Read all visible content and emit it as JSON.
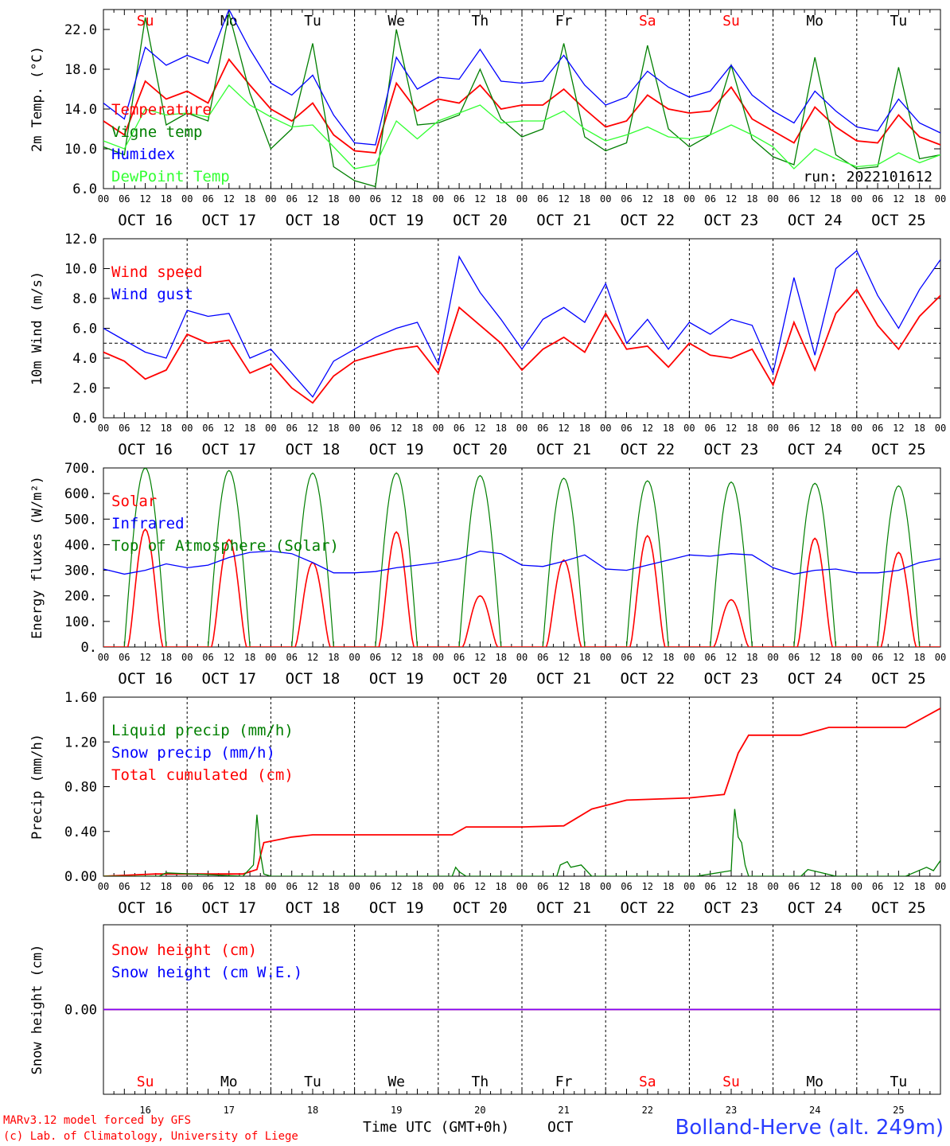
{
  "run_label": "run: 2022101612",
  "footer": {
    "model": "MARv3.12 model forced by GFS",
    "lab": "(c) Lab. of Climatology, University of Liege",
    "time_axis": "Time UTC (GMT+0h)",
    "month": "OCT",
    "station": "Bolland-Herve (alt. 249m)"
  },
  "colors": {
    "red": "#ff0000",
    "green": "#007f00",
    "blue": "#0000ff",
    "lightgreen": "#33ff33",
    "purple": "#7f00ff"
  },
  "weekdays": [
    {
      "label": "Su",
      "weekend": true
    },
    {
      "label": "Mo",
      "weekend": false
    },
    {
      "label": "Tu",
      "weekend": false
    },
    {
      "label": "We",
      "weekend": false
    },
    {
      "label": "Th",
      "weekend": false
    },
    {
      "label": "Fr",
      "weekend": false
    },
    {
      "label": "Sa",
      "weekend": true
    },
    {
      "label": "Su",
      "weekend": true
    },
    {
      "label": "Mo",
      "weekend": false
    },
    {
      "label": "Tu",
      "weekend": false
    }
  ],
  "date_labels": [
    "OCT 16",
    "OCT 17",
    "OCT 18",
    "OCT 19",
    "OCT 20",
    "OCT 21",
    "OCT 22",
    "OCT 23",
    "OCT 24",
    "OCT 25"
  ],
  "day_numbers": [
    "16",
    "17",
    "18",
    "19",
    "20",
    "21",
    "22",
    "23",
    "24",
    "25"
  ],
  "hour_labels": [
    "00",
    "06",
    "12",
    "18"
  ],
  "hour_end_label": "00",
  "chart_data": [
    {
      "id": "temperature",
      "type": "line",
      "ylabel": "2m Temp. (°C)",
      "ylim": [
        6,
        24
      ],
      "yticks": [
        6,
        10,
        14,
        18,
        22
      ],
      "ytick_labels": [
        "6.0",
        "10.0",
        "14.0",
        "18.0",
        "22.0"
      ],
      "xunit": "hours since Oct 16 00 UTC",
      "xlim": [
        0,
        240
      ],
      "legend": [
        "Temperature",
        "Vigne temp",
        "Humidex",
        "DewPoint Temp"
      ],
      "series": [
        {
          "name": "Temperature",
          "color": "red",
          "x": [
            0,
            6,
            12,
            18,
            24,
            30,
            36,
            42,
            48,
            54,
            60,
            66,
            72,
            78,
            84,
            90,
            96,
            102,
            108,
            114,
            120,
            126,
            132,
            138,
            144,
            150,
            156,
            162,
            168,
            174,
            180,
            186,
            192,
            198,
            204,
            210,
            216,
            222,
            228,
            234,
            240
          ],
          "y": [
            12.8,
            11.4,
            16.8,
            15.0,
            15.8,
            14.6,
            19.0,
            16.4,
            14.0,
            12.8,
            14.6,
            11.4,
            9.8,
            9.6,
            16.6,
            13.8,
            15.0,
            14.6,
            16.4,
            14.0,
            14.4,
            14.4,
            16.0,
            14.0,
            12.2,
            12.8,
            15.4,
            14.0,
            13.6,
            13.8,
            16.2,
            13.0,
            11.8,
            10.6,
            14.2,
            12.2,
            10.8,
            10.6,
            13.4,
            11.2,
            10.4
          ]
        },
        {
          "name": "Vigne temp",
          "color": "green",
          "x": [
            0,
            6,
            12,
            18,
            24,
            30,
            36,
            42,
            48,
            54,
            60,
            66,
            72,
            78,
            84,
            90,
            96,
            102,
            108,
            114,
            120,
            126,
            132,
            138,
            144,
            150,
            156,
            162,
            168,
            174,
            180,
            186,
            192,
            198,
            204,
            210,
            216,
            222,
            228,
            234,
            240
          ],
          "y": [
            10.2,
            9.4,
            23.2,
            12.4,
            13.6,
            12.8,
            23.6,
            15.6,
            10.0,
            12.0,
            20.6,
            8.2,
            6.8,
            6.2,
            22.0,
            12.4,
            12.6,
            13.4,
            18.0,
            13.0,
            11.2,
            12.0,
            20.6,
            11.2,
            9.8,
            10.6,
            20.4,
            12.0,
            10.2,
            11.4,
            18.4,
            11.0,
            9.2,
            8.4,
            19.2,
            9.4,
            8.0,
            8.2,
            18.2,
            9.0,
            9.4
          ]
        },
        {
          "name": "Humidex",
          "color": "blue",
          "x": [
            0,
            6,
            12,
            18,
            24,
            30,
            36,
            42,
            48,
            54,
            60,
            66,
            72,
            78,
            84,
            90,
            96,
            102,
            108,
            114,
            120,
            126,
            132,
            138,
            144,
            150,
            156,
            162,
            168,
            174,
            180,
            186,
            192,
            198,
            204,
            210,
            216,
            222,
            228,
            234,
            240
          ],
          "y": [
            14.6,
            13.0,
            20.2,
            18.4,
            19.4,
            18.6,
            24.0,
            20.0,
            16.6,
            15.4,
            17.4,
            13.4,
            10.6,
            10.4,
            19.2,
            16.0,
            17.2,
            17.0,
            20.0,
            16.8,
            16.6,
            16.8,
            19.4,
            16.4,
            14.4,
            15.2,
            17.8,
            16.2,
            15.2,
            15.8,
            18.4,
            15.4,
            13.8,
            12.6,
            15.8,
            13.8,
            12.2,
            11.8,
            15.0,
            12.6,
            11.6
          ]
        },
        {
          "name": "DewPoint Temp",
          "color": "lightgreen",
          "x": [
            0,
            6,
            12,
            18,
            24,
            30,
            36,
            42,
            48,
            54,
            60,
            66,
            72,
            78,
            84,
            90,
            96,
            102,
            108,
            114,
            120,
            126,
            132,
            138,
            144,
            150,
            156,
            162,
            168,
            174,
            180,
            186,
            192,
            198,
            204,
            210,
            216,
            222,
            228,
            234,
            240
          ],
          "y": [
            10.8,
            10.0,
            14.0,
            13.4,
            13.6,
            13.2,
            16.4,
            14.4,
            13.2,
            12.2,
            12.4,
            10.2,
            8.0,
            8.4,
            12.8,
            11.0,
            12.8,
            13.6,
            14.4,
            12.6,
            12.8,
            12.8,
            13.8,
            12.0,
            10.8,
            11.4,
            12.2,
            11.2,
            11.0,
            11.4,
            12.4,
            11.4,
            10.2,
            8.0,
            10.0,
            9.0,
            8.2,
            8.4,
            9.6,
            8.6,
            9.4
          ]
        }
      ]
    },
    {
      "id": "wind",
      "type": "line",
      "ylabel": "10m Wind (m/s)",
      "ylim": [
        0,
        12
      ],
      "yticks": [
        0,
        2,
        4,
        6,
        8,
        10,
        12
      ],
      "ytick_labels": [
        "0.0",
        "2.0",
        "4.0",
        "6.0",
        "8.0",
        "10.0",
        "12.0"
      ],
      "reference_line": 5,
      "xlim": [
        0,
        240
      ],
      "legend": [
        "Wind speed",
        "Wind gust"
      ],
      "series": [
        {
          "name": "Wind speed",
          "color": "red",
          "x": [
            0,
            6,
            12,
            18,
            24,
            30,
            36,
            42,
            48,
            54,
            60,
            66,
            72,
            78,
            84,
            90,
            96,
            102,
            108,
            114,
            120,
            126,
            132,
            138,
            144,
            150,
            156,
            162,
            168,
            174,
            180,
            186,
            192,
            198,
            204,
            210,
            216,
            222,
            228,
            234,
            240
          ],
          "y": [
            4.4,
            3.8,
            2.6,
            3.2,
            5.6,
            5.0,
            5.2,
            3.0,
            3.6,
            2.0,
            1.0,
            2.8,
            3.8,
            4.2,
            4.6,
            4.8,
            3.0,
            7.4,
            6.2,
            5.0,
            3.2,
            4.6,
            5.4,
            4.4,
            7.0,
            4.6,
            4.8,
            3.4,
            5.0,
            4.2,
            4.0,
            4.6,
            2.2,
            6.4,
            3.2,
            7.0,
            8.6,
            6.2,
            4.6,
            6.8,
            8.2
          ]
        },
        {
          "name": "Wind gust",
          "color": "blue",
          "x": [
            0,
            6,
            12,
            18,
            24,
            30,
            36,
            42,
            48,
            54,
            60,
            66,
            72,
            78,
            84,
            90,
            96,
            102,
            108,
            114,
            120,
            126,
            132,
            138,
            144,
            150,
            156,
            162,
            168,
            174,
            180,
            186,
            192,
            198,
            204,
            210,
            216,
            222,
            228,
            234,
            240
          ],
          "y": [
            6.0,
            5.2,
            4.4,
            4.0,
            7.2,
            6.8,
            7.0,
            4.0,
            4.6,
            3.0,
            1.4,
            3.8,
            4.6,
            5.4,
            6.0,
            6.4,
            3.6,
            10.8,
            8.4,
            6.6,
            4.6,
            6.6,
            7.4,
            6.4,
            9.0,
            5.0,
            6.6,
            4.6,
            6.4,
            5.6,
            6.6,
            6.2,
            3.0,
            9.4,
            4.2,
            10.0,
            11.2,
            8.2,
            6.0,
            8.6,
            10.6
          ]
        }
      ]
    },
    {
      "id": "energy",
      "type": "line",
      "ylabel": "Energy fluxes (W/m²)",
      "ylim": [
        0,
        700
      ],
      "yticks": [
        0,
        100,
        200,
        300,
        400,
        500,
        600,
        700
      ],
      "ytick_labels": [
        "0.",
        "100.",
        "200.",
        "300.",
        "400.",
        "500.",
        "600.",
        "700."
      ],
      "xlim": [
        0,
        240
      ],
      "legend": [
        "Solar",
        "Infrared",
        "Top of Atmosphere (Solar)"
      ],
      "solar_peaks": [
        460,
        420,
        330,
        450,
        200,
        340,
        435,
        185,
        425,
        370
      ],
      "toa_peaks": [
        700,
        690,
        680,
        680,
        670,
        660,
        650,
        645,
        640,
        630
      ],
      "series": [
        {
          "name": "Infrared",
          "color": "blue",
          "x": [
            0,
            6,
            12,
            18,
            24,
            30,
            36,
            42,
            48,
            54,
            60,
            66,
            72,
            78,
            84,
            90,
            96,
            102,
            108,
            114,
            120,
            126,
            132,
            138,
            144,
            150,
            156,
            162,
            168,
            174,
            180,
            186,
            192,
            198,
            204,
            210,
            216,
            222,
            228,
            234,
            240
          ],
          "y": [
            305,
            285,
            300,
            325,
            310,
            320,
            350,
            370,
            375,
            365,
            330,
            290,
            290,
            295,
            310,
            320,
            330,
            345,
            375,
            365,
            320,
            315,
            335,
            360,
            305,
            300,
            320,
            340,
            360,
            355,
            365,
            360,
            310,
            285,
            300,
            305,
            290,
            290,
            300,
            330,
            345
          ]
        }
      ]
    },
    {
      "id": "precip",
      "type": "line",
      "ylabel": "Precip (mm/h)",
      "ylim": [
        0,
        1.6
      ],
      "yticks": [
        0,
        0.4,
        0.8,
        1.2,
        1.6
      ],
      "ytick_labels": [
        "0.00",
        "0.40",
        "0.80",
        "1.20",
        "1.60"
      ],
      "xlim": [
        0,
        240
      ],
      "legend": [
        "Liquid precip (mm/h)",
        "Snow precip (mm/h)",
        "Total cumulated (cm)"
      ],
      "series": [
        {
          "name": "Total cumulated (cm)",
          "color": "red",
          "x": [
            0,
            15,
            40,
            44,
            46,
            54,
            60,
            90,
            100,
            104,
            120,
            132,
            140,
            150,
            168,
            178,
            182,
            185,
            200,
            208,
            230,
            240
          ],
          "y": [
            0,
            0.02,
            0.02,
            0.06,
            0.3,
            0.35,
            0.37,
            0.37,
            0.37,
            0.44,
            0.44,
            0.45,
            0.6,
            0.68,
            0.7,
            0.73,
            1.1,
            1.26,
            1.26,
            1.33,
            1.33,
            1.5
          ]
        },
        {
          "name": "Liquid precip (mm/h)",
          "color": "green",
          "x": [
            0,
            16,
            18,
            40,
            43,
            44,
            45,
            46,
            48,
            100,
            101,
            102,
            104,
            120,
            130,
            131,
            133,
            134,
            137,
            140,
            160,
            170,
            180,
            180.5,
            181,
            182,
            183,
            184,
            185,
            190,
            200,
            202,
            206,
            210,
            230,
            236,
            238,
            240
          ],
          "y": [
            0,
            0,
            0.03,
            0,
            0.1,
            0.55,
            0.2,
            0.02,
            0,
            0,
            0.08,
            0.04,
            0,
            0,
            0,
            0.1,
            0.13,
            0.08,
            0.1,
            0,
            0,
            0,
            0.05,
            0.35,
            0.6,
            0.35,
            0.3,
            0.1,
            0,
            0,
            0,
            0.06,
            0.03,
            0,
            0,
            0.08,
            0.05,
            0.14
          ]
        }
      ]
    },
    {
      "id": "snow",
      "type": "line",
      "ylabel": "Snow height (cm)",
      "ylim": [
        -1,
        1
      ],
      "yticks": [
        0
      ],
      "ytick_labels": [
        "0.00"
      ],
      "xlim": [
        0,
        240
      ],
      "legend": [
        "Snow height (cm)",
        "Snow height (cm W.E.)"
      ],
      "series": [
        {
          "name": "Snow height (cm)",
          "color": "red",
          "x": [
            0,
            240
          ],
          "y": [
            0,
            0
          ]
        },
        {
          "name": "Snow height (cm W.E.)",
          "color": "blue",
          "x": [
            0,
            240
          ],
          "y": [
            0,
            0
          ]
        }
      ]
    }
  ]
}
